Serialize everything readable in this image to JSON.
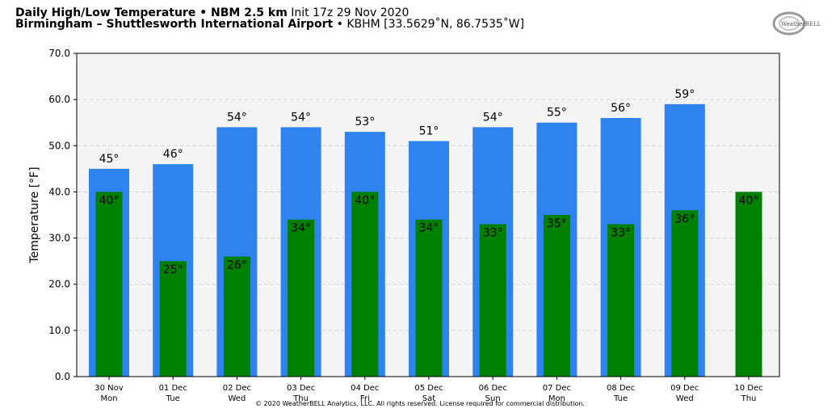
{
  "header": {
    "title_bold": "Daily High/Low Temperature • NBM 2.5 km",
    "init_text": "Init 17z 29 Nov 2020",
    "location_bold": "Birmingham – Shuttlesworth International Airport",
    "station_text": "• KBHM [33.5629˚N, 86.7535˚W]"
  },
  "logo": {
    "text": "WeatherBELL",
    "icon": "weatherbell-swirl-logo"
  },
  "footer": {
    "text": "© 2020 WeatherBELL Analytics, LLC. All rights reserved. License required for commercial distribution."
  },
  "colors": {
    "high": "#2f83ee",
    "low": "#008000",
    "plot_bg": "#f4f4f4",
    "grid": "#d9d9d9"
  },
  "chart_data": {
    "type": "bar",
    "ylabel": "Temperature [°F]",
    "ylim": [
      0,
      70
    ],
    "yticks": [
      "0.0",
      "10.0",
      "20.0",
      "30.0",
      "40.0",
      "50.0",
      "60.0",
      "70.0"
    ],
    "grid": true,
    "categories": [
      [
        "30 Nov",
        "Mon"
      ],
      [
        "01 Dec",
        "Tue"
      ],
      [
        "02 Dec",
        "Wed"
      ],
      [
        "03 Dec",
        "Thu"
      ],
      [
        "04 Dec",
        "Fri"
      ],
      [
        "05 Dec",
        "Sat"
      ],
      [
        "06 Dec",
        "Sun"
      ],
      [
        "07 Dec",
        "Mon"
      ],
      [
        "08 Dec",
        "Tue"
      ],
      [
        "09 Dec",
        "Wed"
      ],
      [
        "10 Dec",
        "Thu"
      ]
    ],
    "series": [
      {
        "key": "high",
        "values": [
          45,
          46,
          54,
          54,
          53,
          51,
          54,
          55,
          56,
          59,
          null
        ],
        "labels": [
          "45°",
          "46°",
          "54°",
          "54°",
          "53°",
          "51°",
          "54°",
          "55°",
          "56°",
          "59°",
          ""
        ]
      },
      {
        "key": "low",
        "values": [
          40,
          25,
          26,
          34,
          40,
          34,
          33,
          35,
          33,
          36,
          40
        ],
        "labels": [
          "40°",
          "25°",
          "26°",
          "34°",
          "40°",
          "34°",
          "33°",
          "35°",
          "33°",
          "36°",
          "40°"
        ]
      }
    ]
  }
}
